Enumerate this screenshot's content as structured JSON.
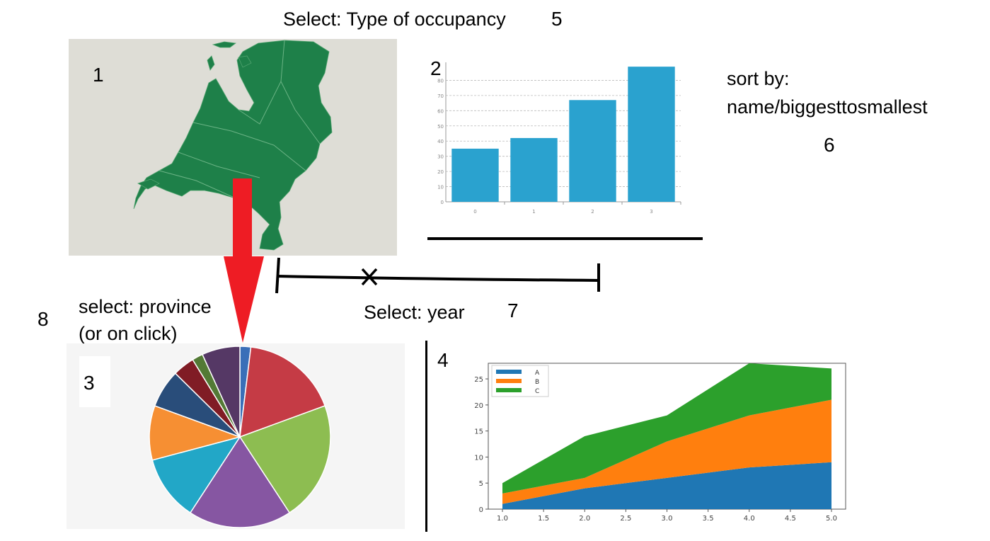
{
  "annotations": {
    "occupancy_label": "Select: Type of occupancy",
    "occupancy_number": "5",
    "sort_label_line1": "sort by:",
    "sort_label_line2": "name/biggesttosmallest",
    "sort_number": "6",
    "year_label": "Select: year",
    "year_number": "7",
    "province_label_line1": "select: province",
    "province_label_line2": "(or on click)",
    "province_number": "8"
  },
  "panels": {
    "map_number": "1",
    "bar_number": "2",
    "pie_number": "3",
    "area_number": "4"
  },
  "colors": {
    "map_land": "#1e8049",
    "map_background": "#deddd6",
    "arrow": "#ee1c24",
    "bar": "#2aa2cf"
  },
  "chart_data": [
    {
      "type": "bar",
      "categories": [
        "0",
        "1",
        "2",
        "3"
      ],
      "values": [
        35,
        42,
        67,
        89
      ],
      "ylim": [
        0,
        90
      ],
      "yticks": [
        "0",
        "10",
        "20",
        "30",
        "40",
        "50",
        "60",
        "70",
        "80"
      ],
      "grid": true
    },
    {
      "type": "pie",
      "values": [
        2,
        18,
        22,
        19,
        12,
        10,
        7,
        4,
        2,
        7
      ],
      "colors": [
        "#3a6fb8",
        "#c53b45",
        "#8dbd51",
        "#8656a2",
        "#22a7c7",
        "#f68f33",
        "#294d7a",
        "#801c25",
        "#537a35",
        "#553865"
      ]
    },
    {
      "type": "area",
      "x": [
        1.0,
        1.5,
        2.0,
        2.5,
        3.0,
        3.5,
        4.0,
        4.5,
        5.0
      ],
      "xticks": [
        "1.0",
        "1.5",
        "2.0",
        "2.5",
        "3.0",
        "3.5",
        "4.0",
        "4.5",
        "5.0"
      ],
      "yticks": [
        "0",
        "5",
        "10",
        "15",
        "20",
        "25"
      ],
      "ylim": [
        0,
        28
      ],
      "legend": "top-left",
      "series": [
        {
          "name": "A",
          "color": "#1f77b4",
          "values": [
            1,
            2.5,
            4,
            5,
            6,
            7,
            8,
            8.5,
            9
          ]
        },
        {
          "name": "B",
          "color": "#ff7f0e",
          "values": [
            2,
            2,
            2,
            4.5,
            7,
            8.5,
            10,
            11,
            12
          ]
        },
        {
          "name": "C",
          "color": "#2ca02c",
          "values": [
            2,
            5,
            8,
            6.5,
            5,
            7.5,
            10,
            8,
            6
          ]
        }
      ]
    }
  ]
}
